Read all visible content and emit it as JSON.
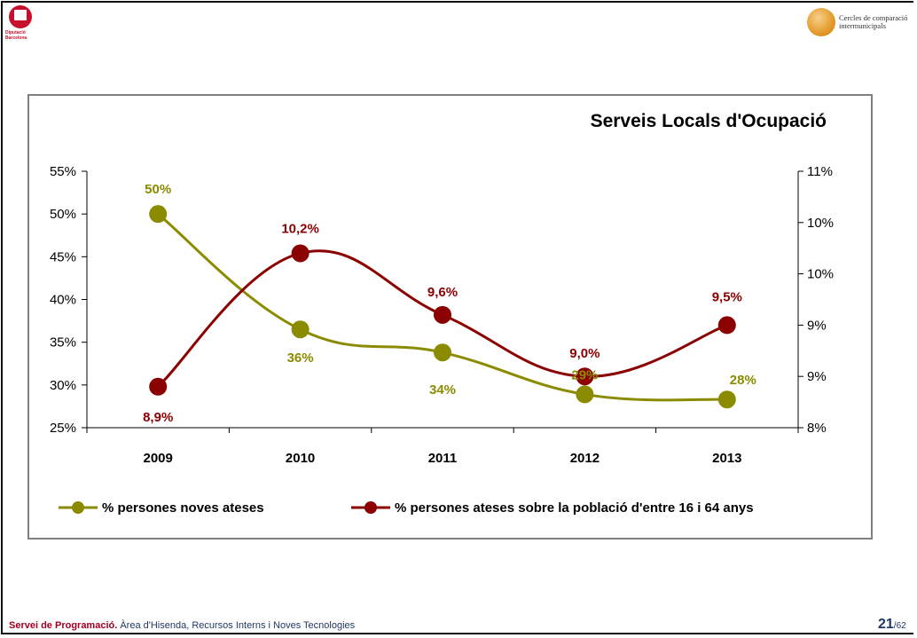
{
  "header": {
    "left_logo_text": [
      "Diputació",
      "Barcelona"
    ],
    "right_logo_text": [
      "Cercles de comparació",
      "intermunicipals"
    ]
  },
  "footer": {
    "bold": "Servei de Programació.",
    "text": " Àrea d'Hisenda, Recursos Interns i Noves Tecnologies",
    "page": "21",
    "total": "/62"
  },
  "colors": {
    "series1": "#8b8b00",
    "series2": "#8b0000",
    "frame": "#7f7f7f"
  },
  "chart_data": {
    "type": "line",
    "title": "Serveis Locals d'Ocupació",
    "categories": [
      "2009",
      "2010",
      "2011",
      "2012",
      "2013"
    ],
    "series": [
      {
        "name": "% persones noves ateses",
        "axis": "left",
        "values": [
          50,
          36.5,
          33.8,
          28.9,
          28.3
        ],
        "labels": [
          "50%",
          "36%",
          "34%",
          "29%",
          "28%"
        ]
      },
      {
        "name": "% persones ateses sobre la població d'entre 16 i 64 anys",
        "axis": "right",
        "values": [
          8.9,
          10.2,
          9.6,
          9.0,
          9.5
        ],
        "labels": [
          "8,9%",
          "10,2%",
          "9,6%",
          "9,0%",
          "9,5%"
        ]
      }
    ],
    "y_left": {
      "range": [
        25,
        55
      ],
      "ticks": [
        "25%",
        "30%",
        "35%",
        "40%",
        "45%",
        "50%",
        "55%"
      ]
    },
    "y_right": {
      "range": [
        8.5,
        11.0
      ],
      "ticks": [
        "8%",
        "9%",
        "9%",
        "10%",
        "10%",
        "11%"
      ]
    },
    "legend": "bottom",
    "grid": false
  }
}
